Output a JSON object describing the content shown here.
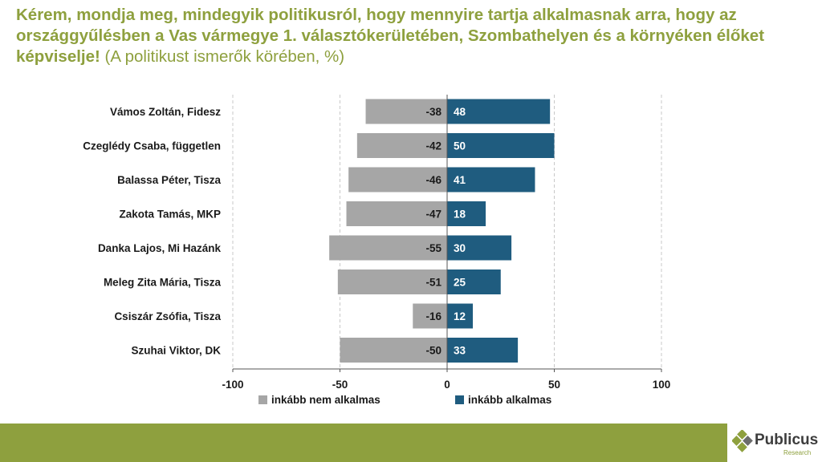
{
  "title": {
    "question": "Kérem, mondja meg, mindegyik politikusról, hogy mennyire tartja alkalmasnak arra, hogy az országgyűlésben a Vas vármegye 1. választókerületében, Szombathelyen és a környéken élőket képviselje!",
    "note": "(A politikust ismerők körében, %)"
  },
  "colors": {
    "title": "#8ea03e",
    "negative": "#a6a6a6",
    "positive": "#1f5c7f",
    "footer": "#8ea03e"
  },
  "chart_data": {
    "type": "bar",
    "orientation": "horizontal-diverging",
    "categories": [
      "Vámos Zoltán, Fidesz",
      "Czeglédy Csaba, független",
      "Balassa Péter, Tisza",
      "Zakota Tamás, MKP",
      "Danka Lajos, Mi Hazánk",
      "Meleg Zita Mária, Tisza",
      "Csiszár Zsófia, Tisza",
      "Szuhai Viktor, DK"
    ],
    "series": [
      {
        "name": "inkább nem alkalmas",
        "values": [
          -38,
          -42,
          -46,
          -47,
          -55,
          -51,
          -16,
          -50
        ]
      },
      {
        "name": "inkább alkalmas",
        "values": [
          48,
          50,
          41,
          18,
          30,
          25,
          12,
          33
        ]
      }
    ],
    "xlim": [
      -100,
      100
    ],
    "xticks": [
      -100,
      -50,
      0,
      50,
      100
    ],
    "grid": "vertical dashed",
    "legend": "bottom-center"
  },
  "logo": {
    "name": "Publicus",
    "sub": "Research"
  }
}
